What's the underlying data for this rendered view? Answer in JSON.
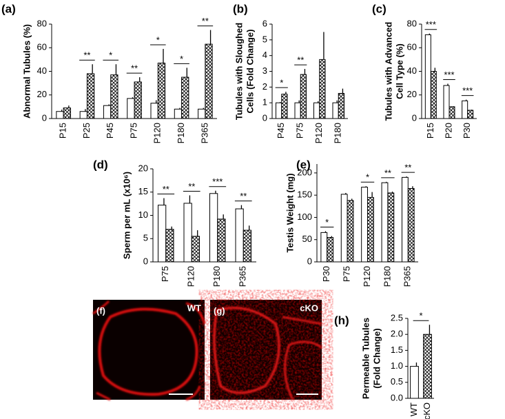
{
  "chart_data": [
    {
      "type": "bar",
      "panel": "(a)",
      "ylabel": [
        "Abnormal Tubules (%)"
      ],
      "categories": [
        "P15",
        "P25",
        "P45",
        "P75",
        "P120",
        "P180",
        "P365"
      ],
      "series": [
        {
          "color": "#ffffff",
          "hatch": false,
          "values": [
            6,
            6,
            11,
            17,
            13,
            8,
            8
          ],
          "errors": [
            1.5,
            2,
            1,
            1,
            2.5,
            1,
            1
          ]
        },
        {
          "color": "#ffffff",
          "hatch": true,
          "values": [
            9,
            38,
            37,
            31,
            47,
            35,
            63
          ],
          "errors": [
            2,
            8,
            9,
            4,
            12,
            8,
            12
          ]
        }
      ],
      "significance": [
        null,
        "**",
        "*",
        "**",
        "*",
        "*",
        "**"
      ],
      "ylim": [
        0,
        80
      ],
      "yticks": [
        0,
        20,
        40,
        60,
        80
      ]
    },
    {
      "type": "bar",
      "panel": "(b)",
      "ylabel": [
        "Tubules with Sloughed",
        "Cells (Fold Change)"
      ],
      "categories": [
        "P45",
        "P75",
        "P120",
        "P180"
      ],
      "series": [
        {
          "color": "#ffffff",
          "hatch": false,
          "values": [
            1,
            1,
            1,
            1
          ],
          "errors": [
            0.05,
            0.15,
            0.1,
            0.15
          ]
        },
        {
          "color": "#ffffff",
          "hatch": true,
          "values": [
            1.55,
            2.8,
            3.75,
            1.6
          ],
          "errors": [
            0.15,
            0.35,
            1.75,
            0.3
          ]
        }
      ],
      "significance": [
        "*",
        "**",
        null,
        null
      ],
      "ylim": [
        0,
        6
      ],
      "yticks": [
        0,
        1,
        2,
        3,
        4,
        5,
        6
      ]
    },
    {
      "type": "bar",
      "panel": "(c)",
      "ylabel": [
        "Tubules with Advanced",
        "Cell Type (%)"
      ],
      "categories": [
        "P15",
        "P20",
        "P30"
      ],
      "series": [
        {
          "color": "#ffffff",
          "hatch": false,
          "values": [
            71,
            28,
            15
          ],
          "errors": [
            1,
            1.5,
            1
          ]
        },
        {
          "color": "#ffffff",
          "hatch": true,
          "values": [
            40,
            10,
            7
          ],
          "errors": [
            3,
            0.5,
            0.5
          ]
        }
      ],
      "significance": [
        "***",
        "***",
        "***"
      ],
      "ylim": [
        0,
        80
      ],
      "yticks": [
        0,
        20,
        40,
        60,
        80
      ]
    },
    {
      "type": "bar",
      "panel": "(d)",
      "ylabel": [
        "Sperm per mL (x10⁶)"
      ],
      "categories": [
        "P75",
        "P120",
        "P180",
        "P365"
      ],
      "series": [
        {
          "color": "#ffffff",
          "hatch": false,
          "values": [
            12.2,
            12.6,
            14.7,
            11.4
          ],
          "errors": [
            1.5,
            1.7,
            0.6,
            0.8
          ]
        },
        {
          "color": "#ffffff",
          "hatch": true,
          "values": [
            7,
            5.5,
            9.2,
            6.8
          ],
          "errors": [
            0.6,
            1.3,
            1,
            1
          ]
        }
      ],
      "significance": [
        "**",
        "**",
        "***",
        "**"
      ],
      "ylim": [
        0,
        20
      ],
      "yticks": [
        0,
        5,
        10,
        15,
        20
      ]
    },
    {
      "type": "bar",
      "panel": "(e)",
      "ylabel": [
        "Testis Weight (mg)"
      ],
      "categories": [
        "P30",
        "P75",
        "P120",
        "P180",
        "P365"
      ],
      "series": [
        {
          "color": "#ffffff",
          "hatch": false,
          "values": [
            66,
            152,
            168,
            178,
            190
          ],
          "errors": [
            3,
            3,
            2,
            2,
            2
          ]
        },
        {
          "color": "#ffffff",
          "hatch": true,
          "values": [
            55,
            138,
            145,
            155,
            165
          ],
          "errors": [
            3,
            4,
            12,
            3,
            5
          ]
        }
      ],
      "significance": [
        "*",
        null,
        "*",
        "**",
        "**"
      ],
      "ylim": [
        0,
        220
      ],
      "yticks": [
        0,
        50,
        100,
        150,
        200
      ]
    },
    {
      "type": "single-bar",
      "panel": "(h)",
      "ylabel": [
        "Permeable Tubules",
        "(Fold Change)"
      ],
      "categories": [
        "WT",
        "cKO"
      ],
      "values": [
        1.0,
        2.0
      ],
      "errors": [
        0.12,
        0.3
      ],
      "colors": [
        "#ffffff",
        "#ffffff"
      ],
      "hatch": [
        false,
        true
      ],
      "significance": "*",
      "ylim": [
        0,
        2.5
      ],
      "yticks": [
        {
          "value": 0,
          "label": "0.0"
        },
        0.5,
        {
          "value": 1,
          "label": "1.0"
        },
        1.5,
        {
          "value": 2,
          "label": "2.0"
        },
        2.5
      ]
    }
  ],
  "images": [
    {
      "panel": "(f)",
      "label": "WT"
    },
    {
      "panel": "(g)",
      "label": "cKO"
    }
  ]
}
